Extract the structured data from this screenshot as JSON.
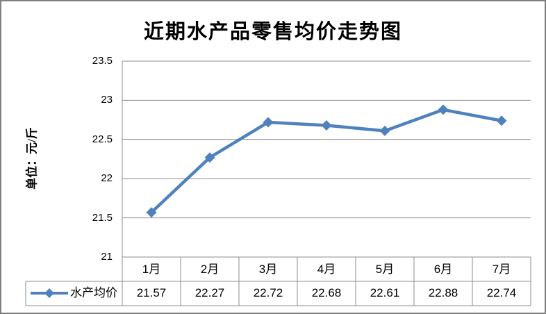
{
  "title": "近期水产品零售均价走势图",
  "y_axis_label": "单位：元/斤",
  "legend": {
    "series_label": "水产均价"
  },
  "chart_data": {
    "type": "line",
    "title": "近期水产品零售均价走势图",
    "ylabel": "单位：元/斤",
    "xlabel": "",
    "categories": [
      "1月",
      "2月",
      "3月",
      "4月",
      "5月",
      "6月",
      "7月"
    ],
    "series": [
      {
        "name": "水产均价",
        "values": [
          21.57,
          22.27,
          22.72,
          22.68,
          22.61,
          22.88,
          22.74
        ],
        "color": "#4F81BD",
        "marker": "diamond"
      }
    ],
    "ylim": [
      21,
      23.5
    ],
    "yticks": [
      21,
      21.5,
      22,
      22.5,
      23,
      23.5
    ],
    "ytick_labels": [
      "21",
      "21.5",
      "22",
      "22.5",
      "23",
      "23.5"
    ],
    "grid": "horizontal-only",
    "legend_position": "data-table-left",
    "value_decimals": 2
  },
  "colors": {
    "frame_border": "#808080",
    "gridline": "#8c8c8c",
    "table_border": "#8c8c8c",
    "series_line": "#4F81BD",
    "background": "#ffffff",
    "text": "#000000"
  }
}
